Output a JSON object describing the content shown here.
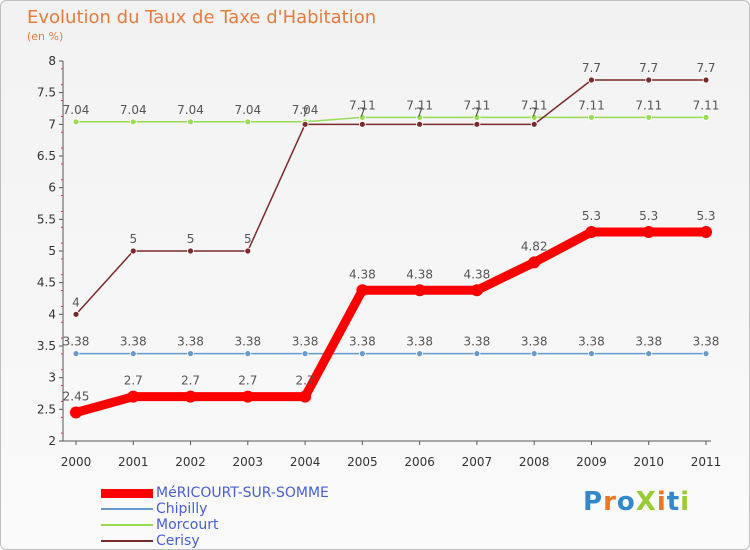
{
  "chart_data": {
    "type": "line",
    "title": "Evolution du Taux de Taxe d'Habitation",
    "subtitle": "(en %)",
    "xlabel": "",
    "ylabel": "",
    "ylim": [
      2,
      8
    ],
    "y_ticks": [
      2,
      2.5,
      3,
      3.5,
      4,
      4.5,
      5,
      5.5,
      6,
      6.5,
      7,
      7.5,
      8
    ],
    "grid": false,
    "legend_position": "bottom-left",
    "categories": [
      "2000",
      "2001",
      "2002",
      "2003",
      "2004",
      "2005",
      "2006",
      "2007",
      "2008",
      "2009",
      "2010",
      "2011"
    ],
    "series": [
      {
        "name": "MéRICOURT-SUR-SOMME",
        "color": "#ff0000",
        "values": [
          2.45,
          2.7,
          2.7,
          2.7,
          2.7,
          4.38,
          4.38,
          4.38,
          4.82,
          5.3,
          5.3,
          5.3
        ],
        "labels": [
          "2.45",
          "2.7",
          "2.7",
          "2.7",
          "2.7",
          "4.38",
          "4.38",
          "4.38",
          "4.82",
          "5.3",
          "5.3",
          "5.3"
        ]
      },
      {
        "name": "Chipilly",
        "color": "#6699cc",
        "values": [
          3.38,
          3.38,
          3.38,
          3.38,
          3.38,
          3.38,
          3.38,
          3.38,
          3.38,
          3.38,
          3.38,
          3.38
        ],
        "labels": [
          "3.38",
          "3.38",
          "3.38",
          "3.38",
          "3.38",
          "3.38",
          "3.38",
          "3.38",
          "3.38",
          "3.38",
          "3.38",
          "3.38"
        ]
      },
      {
        "name": "Morcourt",
        "color": "#99dd55",
        "values": [
          7.04,
          7.04,
          7.04,
          7.04,
          7.04,
          7.11,
          7.11,
          7.11,
          7.11,
          7.11,
          7.11,
          7.11
        ],
        "labels": [
          "7.04",
          "7.04",
          "7.04",
          "7.04",
          "7.04",
          "7.11",
          "7.11",
          "7.11",
          "7.11",
          "7.11",
          "7.11",
          "7.11"
        ]
      },
      {
        "name": "Cerisy",
        "color": "#7a2a2a",
        "values": [
          4,
          5,
          5,
          5,
          7,
          7,
          7,
          7,
          7,
          7.7,
          7.7,
          7.7
        ],
        "labels": [
          "4",
          "5",
          "5",
          "5",
          "7",
          "7",
          "7",
          "7",
          "7",
          "7.7",
          "7.7",
          "7.7"
        ]
      }
    ]
  },
  "logo": {
    "text": "ProXiti",
    "colors": [
      "#3388cc",
      "#ee7722",
      "#3388cc",
      "#99cc33",
      "#ee7722",
      "#3388cc",
      "#99cc33"
    ]
  }
}
